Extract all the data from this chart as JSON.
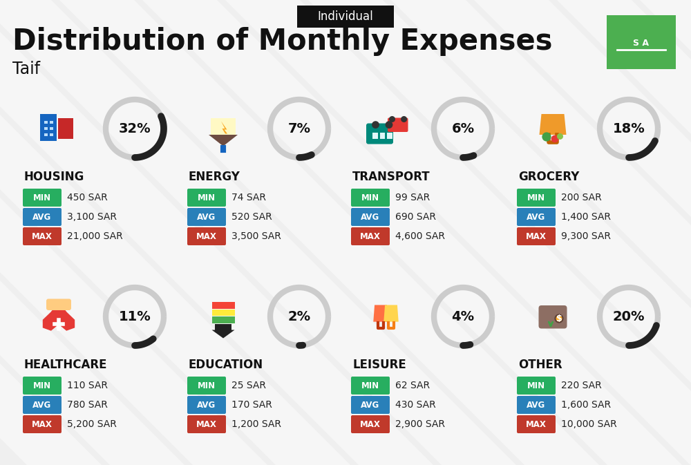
{
  "title": "Distribution of Monthly Expenses",
  "subtitle": "Individual",
  "city": "Taif",
  "bg_color": "#efefef",
  "categories": [
    {
      "name": "HOUSING",
      "percent": 32,
      "min": "450 SAR",
      "avg": "3,100 SAR",
      "max": "21,000 SAR",
      "row": 0,
      "col": 0
    },
    {
      "name": "ENERGY",
      "percent": 7,
      "min": "74 SAR",
      "avg": "520 SAR",
      "max": "3,500 SAR",
      "row": 0,
      "col": 1
    },
    {
      "name": "TRANSPORT",
      "percent": 6,
      "min": "99 SAR",
      "avg": "690 SAR",
      "max": "4,600 SAR",
      "row": 0,
      "col": 2
    },
    {
      "name": "GROCERY",
      "percent": 18,
      "min": "200 SAR",
      "avg": "1,400 SAR",
      "max": "9,300 SAR",
      "row": 0,
      "col": 3
    },
    {
      "name": "HEALTHCARE",
      "percent": 11,
      "min": "110 SAR",
      "avg": "780 SAR",
      "max": "5,200 SAR",
      "row": 1,
      "col": 0
    },
    {
      "name": "EDUCATION",
      "percent": 2,
      "min": "25 SAR",
      "avg": "170 SAR",
      "max": "1,200 SAR",
      "row": 1,
      "col": 1
    },
    {
      "name": "LEISURE",
      "percent": 4,
      "min": "62 SAR",
      "avg": "430 SAR",
      "max": "2,900 SAR",
      "row": 1,
      "col": 2
    },
    {
      "name": "OTHER",
      "percent": 20,
      "min": "220 SAR",
      "avg": "1,600 SAR",
      "max": "10,000 SAR",
      "row": 1,
      "col": 3
    }
  ],
  "min_color": "#27ae60",
  "avg_color": "#2980b9",
  "max_color": "#c0392b",
  "title_color": "#111111",
  "subtitle_bg": "#111111",
  "subtitle_text": "#ffffff",
  "arc_dark": "#222222",
  "arc_light": "#cccccc",
  "stripe_color": "#ffffff",
  "flag_green": "#4caf50",
  "category_name_color": "#111111",
  "value_color": "#222222"
}
